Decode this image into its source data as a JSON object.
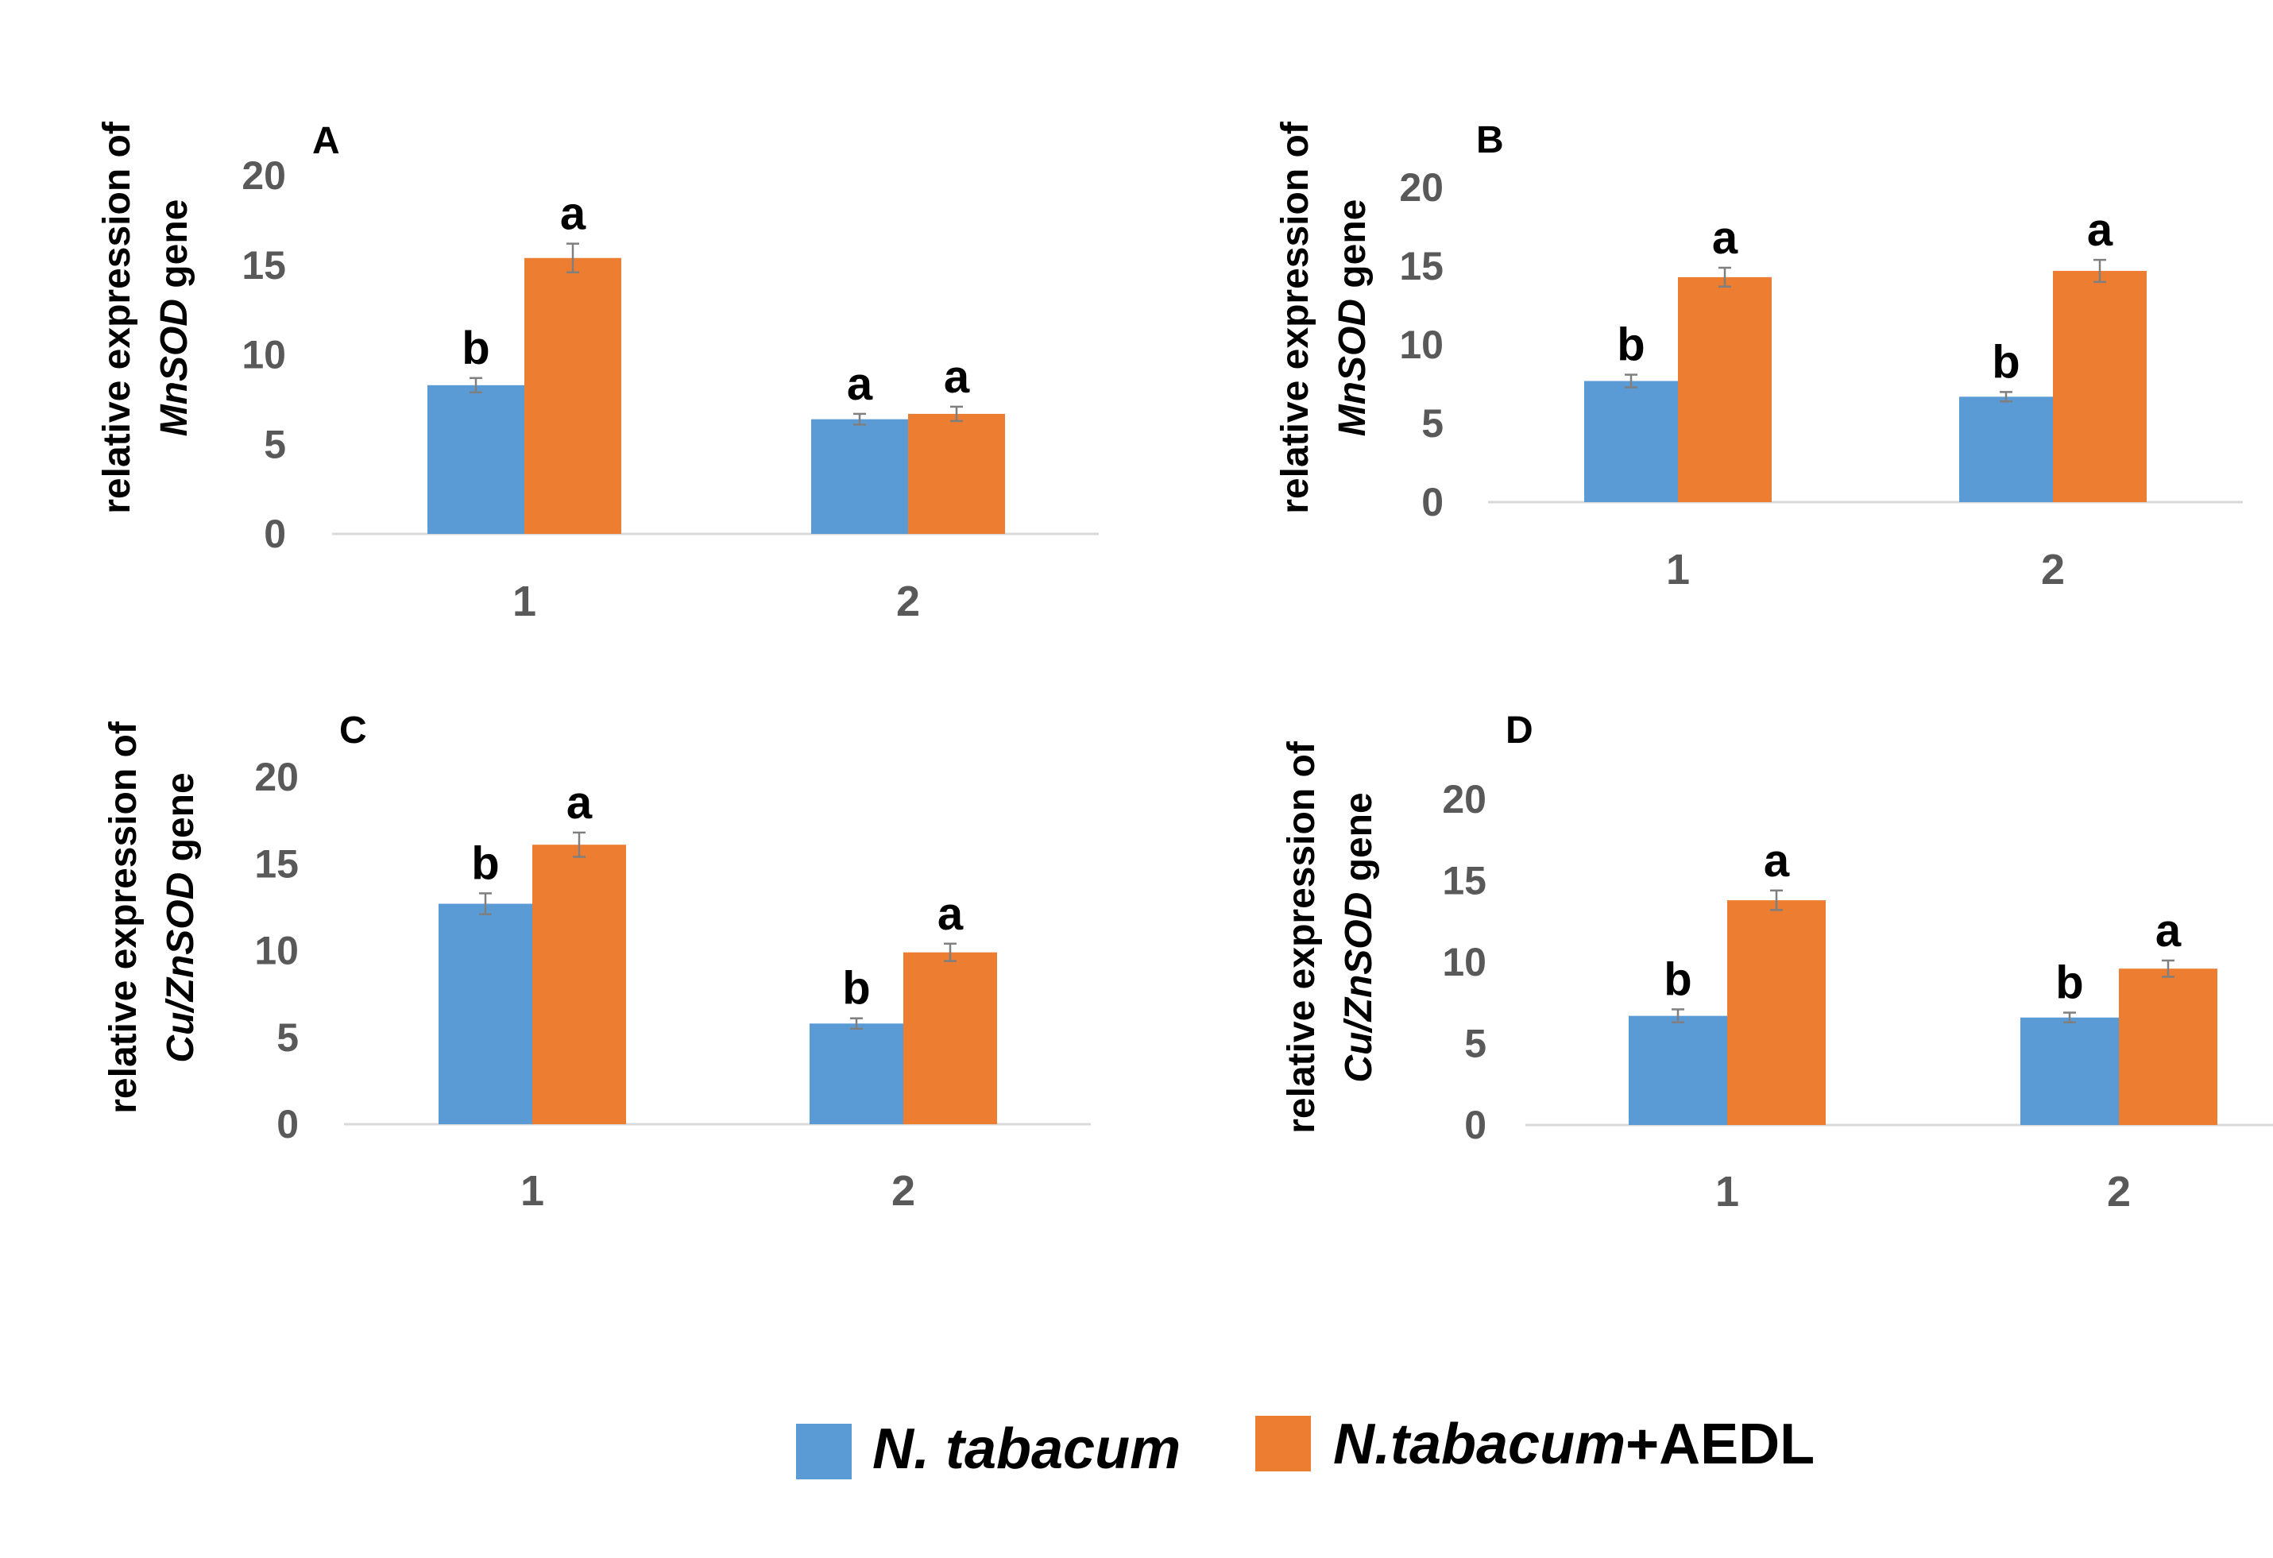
{
  "chart_data": [
    {
      "type": "bar",
      "panel": "A",
      "ylabel_line1": "relative expression of",
      "ylabel_gene": "MnSOD",
      "ylabel_suffix": " gene",
      "yticks": [
        "0",
        "5",
        "10",
        "15",
        "20"
      ],
      "ylim": [
        0,
        20
      ],
      "categories": [
        "1",
        "2"
      ],
      "series": [
        {
          "name": "N. tabacum",
          "color": "#5b9bd5",
          "values": [
            8.3,
            6.4
          ],
          "errors": [
            0.4,
            0.3
          ],
          "letters": [
            "b",
            "a"
          ]
        },
        {
          "name": "N.tabacum+AEDL",
          "color": "#ed7d31",
          "values": [
            15.4,
            6.7
          ],
          "errors": [
            0.8,
            0.4
          ],
          "letters": [
            "a",
            "a"
          ]
        }
      ]
    },
    {
      "type": "bar",
      "panel": "B",
      "ylabel_line1": "relative expression of",
      "ylabel_gene": "MnSOD",
      "ylabel_suffix": " gene",
      "yticks": [
        "0",
        "5",
        "10",
        "15",
        "20"
      ],
      "ylim": [
        0,
        20
      ],
      "categories": [
        "1",
        "2"
      ],
      "series": [
        {
          "name": "N. tabacum",
          "color": "#5b9bd5",
          "values": [
            7.7,
            6.7
          ],
          "errors": [
            0.4,
            0.3
          ],
          "letters": [
            "b",
            "b"
          ]
        },
        {
          "name": "N.tabacum+AEDL",
          "color": "#ed7d31",
          "values": [
            14.3,
            14.7
          ],
          "errors": [
            0.6,
            0.7
          ],
          "letters": [
            "a",
            "a"
          ]
        }
      ]
    },
    {
      "type": "bar",
      "panel": "C",
      "ylabel_line1": "relative expression of",
      "ylabel_gene": "Cu/ZnSOD",
      "ylabel_suffix": " gene",
      "yticks": [
        "0",
        "5",
        "10",
        "15",
        "20"
      ],
      "ylim": [
        0,
        20
      ],
      "categories": [
        "1",
        "2"
      ],
      "series": [
        {
          "name": "N. tabacum",
          "color": "#5b9bd5",
          "values": [
            12.7,
            5.8
          ],
          "errors": [
            0.6,
            0.3
          ],
          "letters": [
            "b",
            "b"
          ]
        },
        {
          "name": "N.tabacum+AEDL",
          "color": "#ed7d31",
          "values": [
            16.1,
            9.9
          ],
          "errors": [
            0.7,
            0.5
          ],
          "letters": [
            "a",
            "a"
          ]
        }
      ]
    },
    {
      "type": "bar",
      "panel": "D",
      "ylabel_line1": "relative expression of",
      "ylabel_gene": "Cu/ZnSOD",
      "ylabel_suffix": " gene",
      "yticks": [
        "0",
        "5",
        "10",
        "15",
        "20"
      ],
      "ylim": [
        0,
        20
      ],
      "categories": [
        "1",
        "2"
      ],
      "series": [
        {
          "name": "N. tabacum",
          "color": "#5b9bd5",
          "values": [
            6.7,
            6.6
          ],
          "errors": [
            0.4,
            0.3
          ],
          "letters": [
            "b",
            "b"
          ]
        },
        {
          "name": "N.tabacum+AEDL",
          "color": "#ed7d31",
          "values": [
            13.8,
            9.6
          ],
          "errors": [
            0.6,
            0.5
          ],
          "letters": [
            "a",
            "a"
          ]
        }
      ]
    }
  ],
  "legend": {
    "entries": [
      {
        "italic": "N. tabacum",
        "suffix": "",
        "color": "#5b9bd5"
      },
      {
        "italic": "N.tabacum",
        "suffix": "+AEDL",
        "color": "#ed7d31"
      }
    ]
  }
}
